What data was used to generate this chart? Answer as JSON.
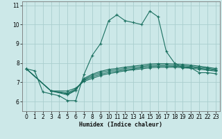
{
  "xlabel": "Humidex (Indice chaleur)",
  "bg_color": "#cce8e8",
  "grid_color": "#aacece",
  "line_color": "#1a7060",
  "xlim": [
    -0.5,
    23.5
  ],
  "ylim": [
    5.5,
    11.2
  ],
  "xticks": [
    0,
    1,
    2,
    3,
    4,
    5,
    6,
    7,
    8,
    9,
    10,
    11,
    12,
    13,
    14,
    15,
    16,
    17,
    18,
    19,
    20,
    21,
    22,
    23
  ],
  "yticks": [
    6,
    7,
    8,
    9,
    10,
    11
  ],
  "lines": [
    {
      "x": [
        0,
        1,
        2,
        3,
        4,
        5,
        6,
        7,
        8,
        9,
        10,
        11,
        12,
        13,
        14,
        15,
        16,
        17,
        18,
        19,
        20,
        21,
        22,
        23
      ],
      "y": [
        7.7,
        7.6,
        6.5,
        6.4,
        6.3,
        6.05,
        6.05,
        7.4,
        8.4,
        9.0,
        10.2,
        10.5,
        10.2,
        10.1,
        10.0,
        10.7,
        10.4,
        8.6,
        8.0,
        7.75,
        7.75,
        7.5,
        7.5,
        7.45
      ]
    },
    {
      "x": [
        0,
        3,
        5,
        6,
        7,
        8,
        9,
        10,
        11,
        12,
        13,
        14,
        15,
        16,
        17,
        18,
        19,
        20,
        21,
        22,
        23
      ],
      "y": [
        7.7,
        6.55,
        6.55,
        6.7,
        7.05,
        7.2,
        7.35,
        7.45,
        7.52,
        7.6,
        7.65,
        7.7,
        7.75,
        7.78,
        7.78,
        7.78,
        7.76,
        7.73,
        7.68,
        7.63,
        7.58
      ]
    },
    {
      "x": [
        0,
        3,
        5,
        6,
        7,
        8,
        9,
        10,
        11,
        12,
        13,
        14,
        15,
        16,
        17,
        18,
        19,
        20,
        21,
        22,
        23
      ],
      "y": [
        7.7,
        6.55,
        6.45,
        6.65,
        7.1,
        7.28,
        7.42,
        7.52,
        7.58,
        7.65,
        7.7,
        7.76,
        7.82,
        7.84,
        7.84,
        7.83,
        7.81,
        7.78,
        7.73,
        7.68,
        7.62
      ]
    },
    {
      "x": [
        0,
        3,
        5,
        6,
        7,
        8,
        9,
        10,
        11,
        12,
        13,
        14,
        15,
        16,
        17,
        18,
        19,
        20,
        21,
        22,
        23
      ],
      "y": [
        7.7,
        6.55,
        6.4,
        6.6,
        7.15,
        7.35,
        7.5,
        7.6,
        7.65,
        7.72,
        7.77,
        7.82,
        7.88,
        7.9,
        7.9,
        7.88,
        7.86,
        7.83,
        7.78,
        7.73,
        7.67
      ]
    },
    {
      "x": [
        0,
        3,
        5,
        6,
        7,
        8,
        9,
        10,
        11,
        12,
        13,
        14,
        15,
        16,
        17,
        18,
        19,
        20,
        21,
        22,
        23
      ],
      "y": [
        7.7,
        6.55,
        6.35,
        6.58,
        7.2,
        7.42,
        7.57,
        7.67,
        7.72,
        7.79,
        7.84,
        7.89,
        7.95,
        7.97,
        7.97,
        7.95,
        7.93,
        7.89,
        7.84,
        7.78,
        7.72
      ]
    }
  ]
}
